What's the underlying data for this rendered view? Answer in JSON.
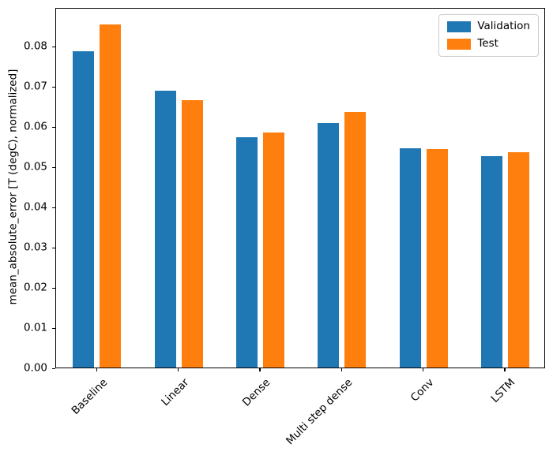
{
  "chart_data": {
    "type": "bar",
    "title": "",
    "xlabel": "",
    "ylabel": "mean_absolute_error [T (degC), normalized]",
    "categories": [
      "Baseline",
      "Linear",
      "Dense",
      "Multi step dense",
      "Conv",
      "LSTM"
    ],
    "series": [
      {
        "name": "Validation",
        "color": "#1f77b4",
        "values": [
          0.0785,
          0.0687,
          0.0572,
          0.0607,
          0.0545,
          0.0524
        ]
      },
      {
        "name": "Test",
        "color": "#ff7f0e",
        "values": [
          0.0852,
          0.0663,
          0.0583,
          0.0634,
          0.0543,
          0.0534
        ]
      }
    ],
    "ylim": [
      0,
      0.0895
    ],
    "yticks": [
      0.0,
      0.01,
      0.02,
      0.03,
      0.04,
      0.05,
      0.06,
      0.07,
      0.08
    ],
    "y_tick_format": "2dp",
    "x_tick_rotation": 45,
    "grid": false,
    "legend_position": "upper right"
  }
}
